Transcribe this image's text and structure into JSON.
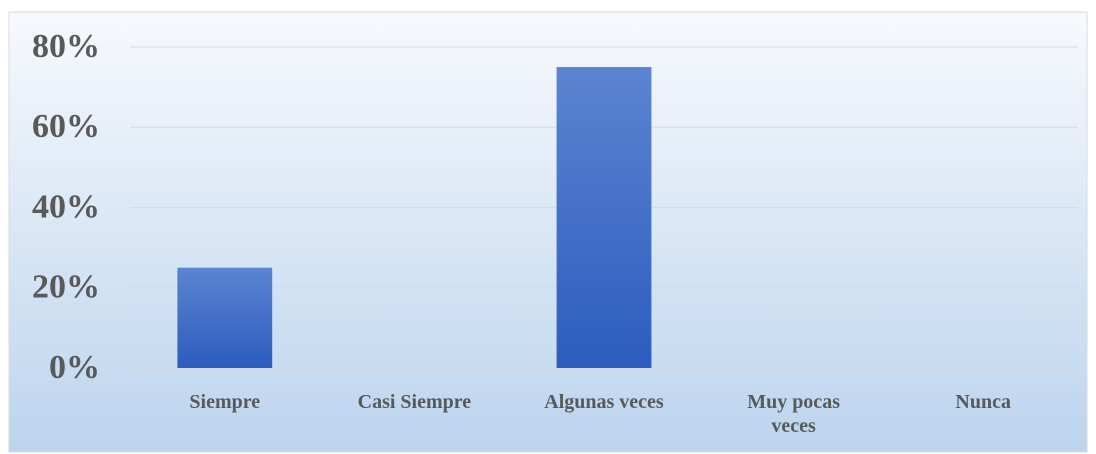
{
  "chart_data": {
    "type": "bar",
    "categories": [
      "Siempre",
      "Casi Siempre",
      "Algunas veces",
      "Muy pocas veces",
      "Nunca"
    ],
    "values": [
      25,
      0,
      75,
      0,
      0
    ],
    "color": "#3e6cc8",
    "ylim": [
      0,
      80
    ],
    "yticks": [
      {
        "value": 0,
        "label": "0%"
      },
      {
        "value": 20,
        "label": "20%"
      },
      {
        "value": 40,
        "label": "40%"
      },
      {
        "value": 60,
        "label": "60%"
      },
      {
        "value": 80,
        "label": "80%"
      }
    ],
    "grid": true
  }
}
